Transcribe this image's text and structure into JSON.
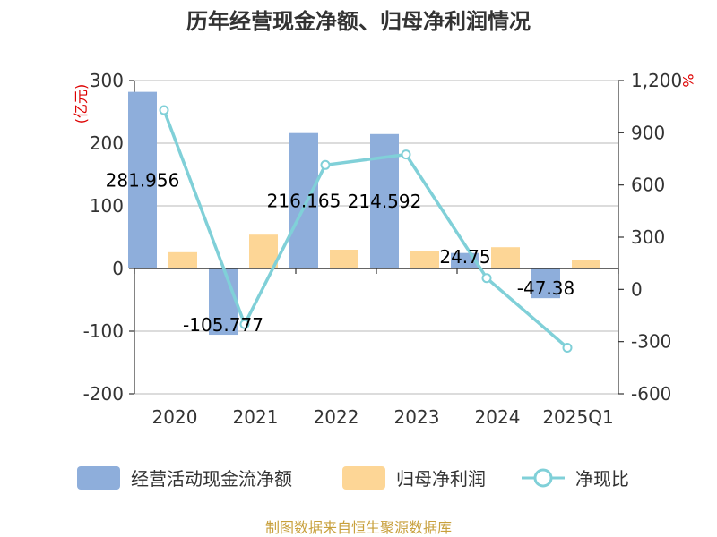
{
  "chart_data": {
    "type": "bar",
    "title": "历年经营现金净额、归母净利润情况",
    "categories": [
      "2020",
      "2021",
      "2022",
      "2023",
      "2024",
      "2025Q1"
    ],
    "left_axis": {
      "unit": "(亿元)",
      "ylim": [
        -200,
        300
      ],
      "ticks": [
        "300",
        "200",
        "100",
        "0",
        "-100",
        "-200"
      ],
      "tick_values": [
        300,
        200,
        100,
        0,
        -100,
        -200
      ]
    },
    "right_axis": {
      "unit": "%",
      "ylim": [
        -600,
        1200
      ],
      "ticks": [
        "1,200",
        "900",
        "600",
        "300",
        "0",
        "-300",
        "-600"
      ],
      "tick_values": [
        1200,
        900,
        600,
        300,
        0,
        -300,
        -600
      ]
    },
    "series": [
      {
        "name": "经营活动现金流净额",
        "type": "bar",
        "axis": "left",
        "color": "#8eaedb",
        "values": [
          281.956,
          -105.777,
          216.165,
          214.592,
          24.75,
          -47.38
        ],
        "labels": [
          "281.956",
          "-105.777",
          "216.165",
          "214.592",
          "24.75",
          "-47.38"
        ]
      },
      {
        "name": "归母净利润",
        "type": "bar",
        "axis": "left",
        "color": "#fdd696",
        "values": [
          26,
          54,
          30,
          28,
          34,
          14
        ]
      },
      {
        "name": "净现比",
        "type": "line",
        "axis": "right",
        "color": "#80d0d8",
        "values": [
          1030,
          -200,
          715,
          775,
          65,
          -335
        ]
      }
    ],
    "grid": true,
    "legend_position": "bottom"
  },
  "footer": {
    "source": "制图数据来自恒生聚源数据库"
  }
}
